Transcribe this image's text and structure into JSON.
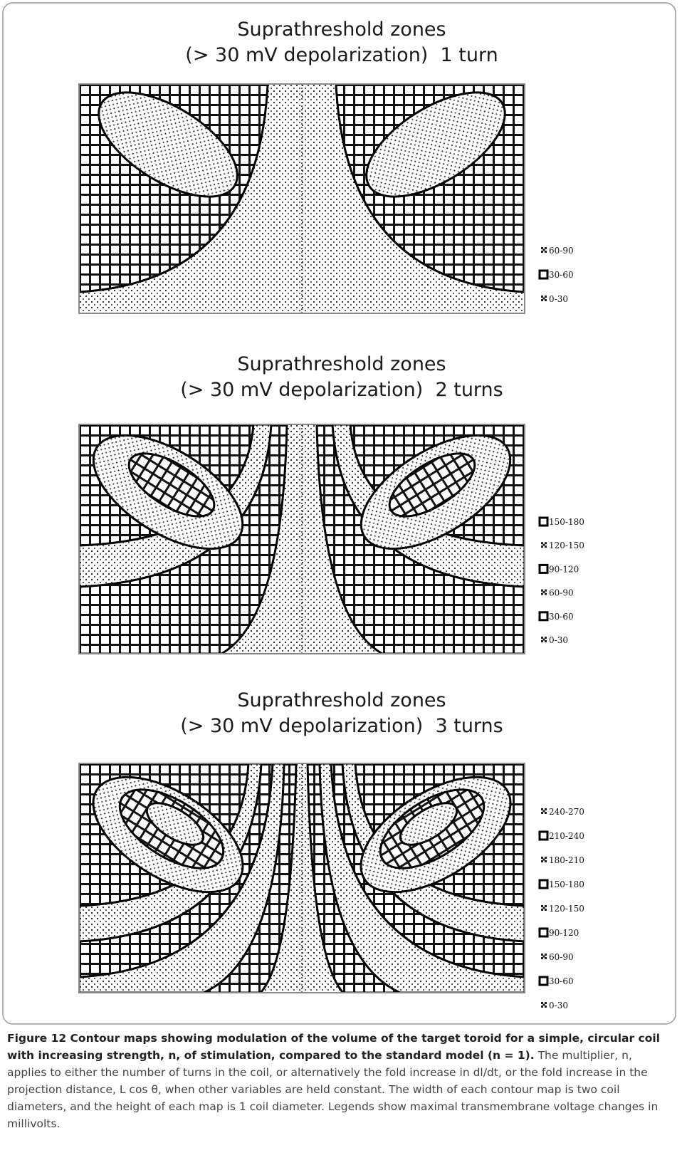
{
  "panels": [
    {
      "title": [
        "Suprathreshold zones",
        "(> 30 mV depolarization)  1 turn"
      ],
      "legend": [
        "60-90",
        "30-60",
        "0-30"
      ]
    },
    {
      "title": [
        "Suprathreshold zones",
        "(> 30 mV depolarization)  2 turns"
      ],
      "legend": [
        "150-180",
        "120-150",
        "90-120",
        "60-90",
        "30-60",
        "0-30"
      ]
    },
    {
      "title": [
        "Suprathreshold zones",
        "(> 30 mV depolarization)  3 turns"
      ],
      "legend": [
        "240-270",
        "210-240",
        "180-210",
        "150-180",
        "120-150",
        "90-120",
        "60-90",
        "30-60",
        "0-30"
      ]
    }
  ],
  "caption": {
    "label": "Figure 12 Contour maps showing modulation of the volume of the target toroid for a simple, circular coil with increasing strength, n, of stimulation, compared to the standard model (n = 1).",
    "text": " The multiplier, n, applies to either the number of turns in the coil, or alternatively the fold increase in dl/dt, or the fold increase in the projection distance, L cos θ, when other variables are held constant. The width of each contour map is two coil diameters, and the height of each map is 1 coil diameter. Legends show maximal transmembrane voltage changes in millivolts."
  }
}
